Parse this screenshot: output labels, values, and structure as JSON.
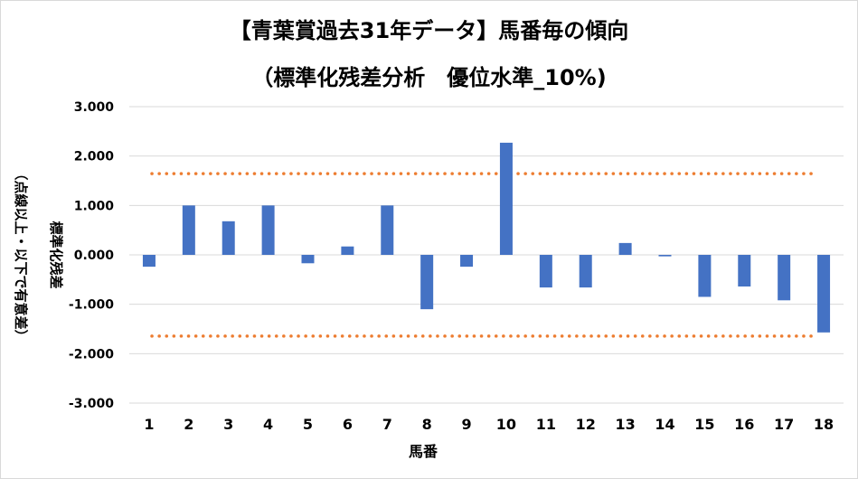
{
  "chart_data": {
    "type": "bar",
    "title": "【青葉賞過去31年データ】馬番毎の傾向",
    "subtitle": "（標準化残差分析　優位水準_10%)",
    "xlabel": "馬番",
    "ylabel": "標準化残差",
    "ylabel_note": "（点線以上・以下で有意差）",
    "categories": [
      "1",
      "2",
      "3",
      "4",
      "5",
      "6",
      "7",
      "8",
      "9",
      "10",
      "11",
      "12",
      "13",
      "14",
      "15",
      "16",
      "17",
      "18"
    ],
    "values": [
      -0.24,
      1.0,
      0.68,
      1.0,
      -0.17,
      0.17,
      1.0,
      -1.1,
      -0.24,
      2.27,
      -0.66,
      -0.66,
      0.24,
      -0.03,
      -0.85,
      -0.64,
      -0.92,
      -1.57
    ],
    "ylim": [
      -3,
      3
    ],
    "yticks": [
      "3.000",
      "2.000",
      "1.000",
      "0.000",
      "-1.000",
      "-2.000",
      "-3.000"
    ],
    "threshold_upper": 1.645,
    "threshold_lower": -1.645,
    "grid": true,
    "legend": "none",
    "colors": {
      "bar": "#4472C4",
      "threshold": "#ED7D31",
      "grid": "#d9d9d9"
    }
  }
}
